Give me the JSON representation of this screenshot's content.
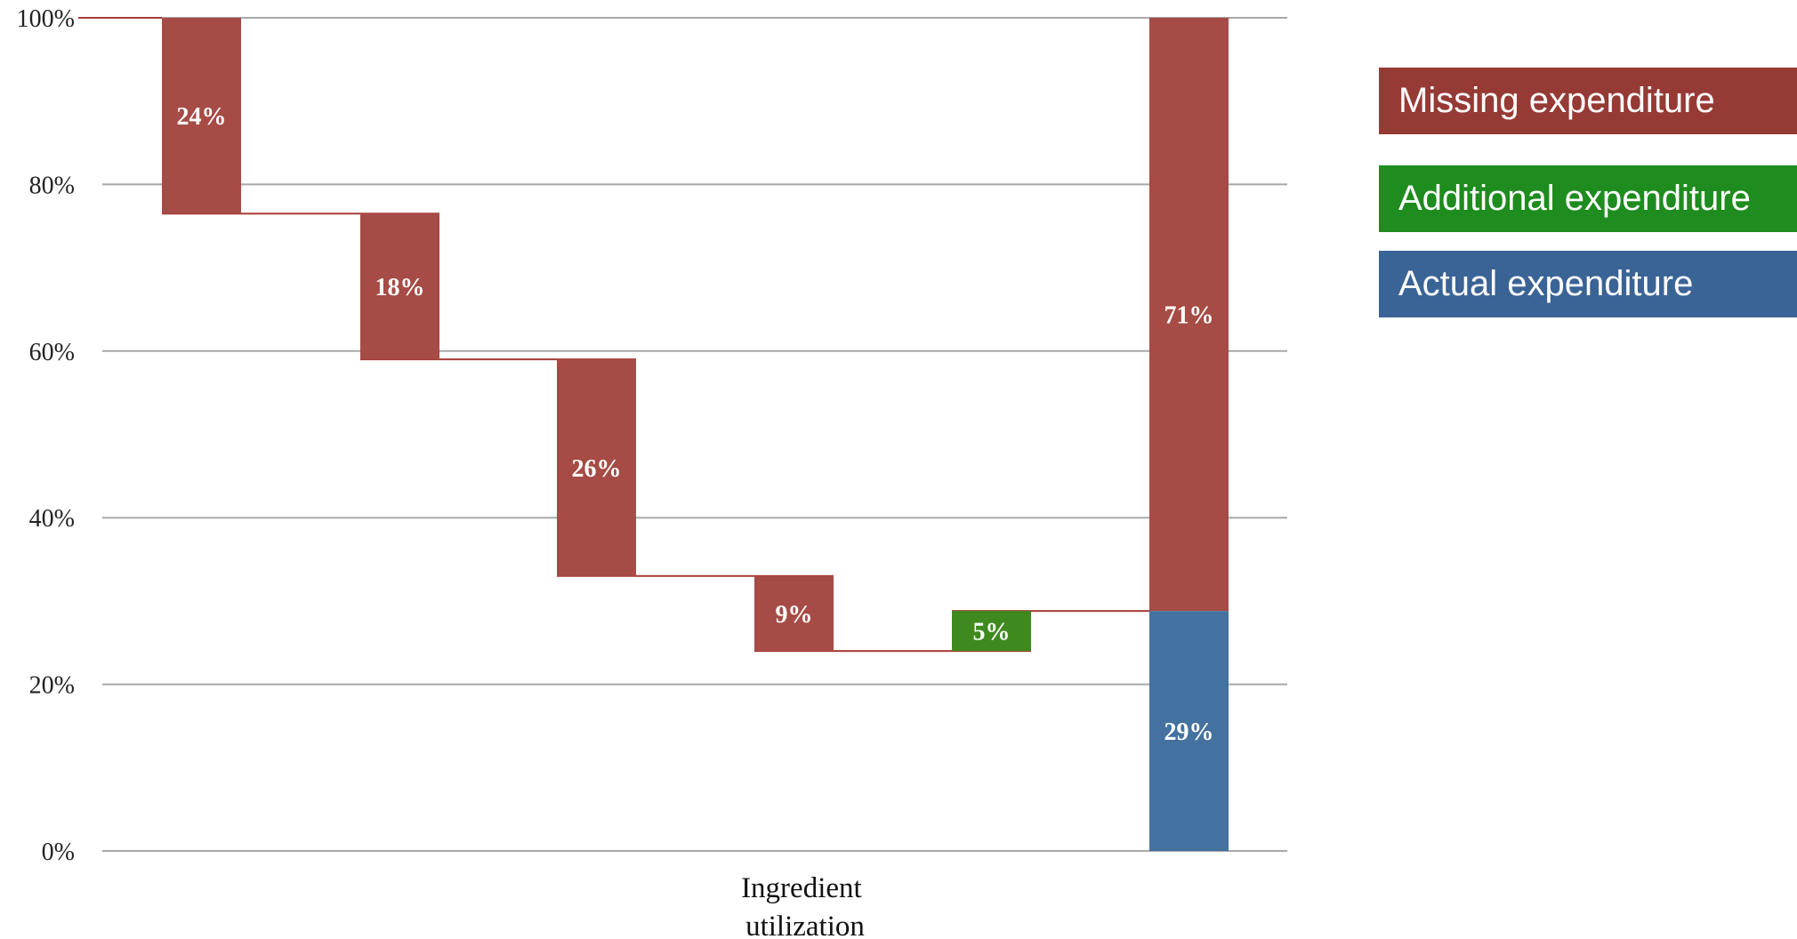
{
  "chart_data": {
    "type": "bar",
    "variant": "waterfall",
    "xlabel": "Ingredient utilization",
    "ylim": [
      0,
      100
    ],
    "yticks": [
      "0%",
      "20%",
      "40%",
      "60%",
      "80%",
      "100%"
    ],
    "grid": true,
    "legend_position": "right",
    "steps": [
      {
        "label": "24%",
        "start": 100,
        "end": 76.5,
        "kind": "missing"
      },
      {
        "label": "18%",
        "start": 76.5,
        "end": 59,
        "kind": "missing"
      },
      {
        "label": "26%",
        "start": 59,
        "end": 33,
        "kind": "missing"
      },
      {
        "label": "9%",
        "start": 33,
        "end": 24,
        "kind": "missing"
      },
      {
        "label": "5%",
        "start": 24,
        "end": 28.8,
        "kind": "additional"
      }
    ],
    "total": [
      {
        "label": "71%",
        "start": 100,
        "end": 28.8,
        "kind": "missing"
      },
      {
        "label": "29%",
        "start": 28.8,
        "end": 0,
        "kind": "actual"
      }
    ],
    "colors": {
      "missing": "#A64B45",
      "additional": "#3E8A1E",
      "actual": "#4472A0",
      "connector": "#A93A35",
      "grid": "#A8A8A8",
      "legend_missing": "#963A35",
      "legend_additional": "#1E8C1E",
      "legend_actual": "#3A6396"
    },
    "legend": [
      {
        "label": "Missing expenditure",
        "kind": "legend_missing"
      },
      {
        "label": "Additional expenditure",
        "kind": "legend_additional"
      },
      {
        "label": "Actual expenditure",
        "kind": "legend_actual"
      }
    ]
  }
}
